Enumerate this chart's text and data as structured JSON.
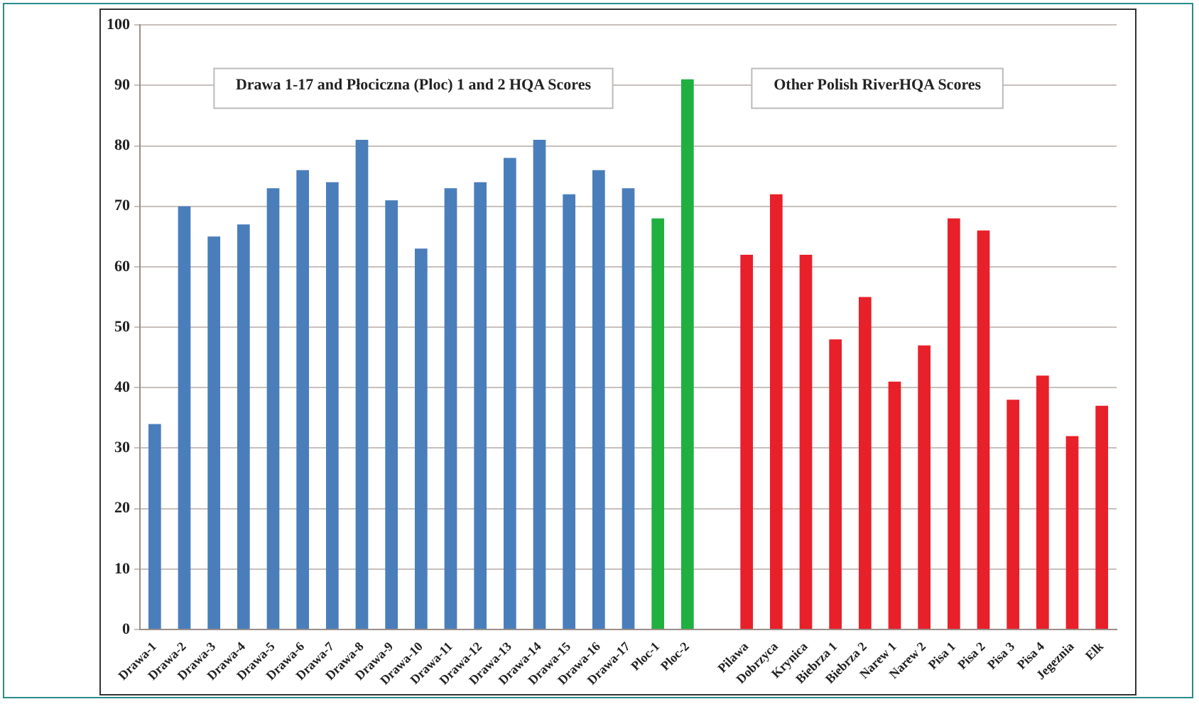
{
  "chart_data": {
    "type": "bar",
    "categories": [
      "Drawa-1",
      "Drawa-2",
      "Drawa-3",
      "Drawa-4",
      "Drawa-5",
      "Drawa-6",
      "Drawa-7",
      "Drawa-8",
      "Drawa-9",
      "Drawa-10",
      "Drawa-11",
      "Drawa-12",
      "Drawa-13",
      "Drawa-14",
      "Drawa-15",
      "Drawa-16",
      "Drawa-17",
      "Ploc-1",
      "Ploc-2",
      null,
      "Pilawa",
      "Dobrzyca",
      "Krynica",
      "Biebrza 1",
      "Biebrza 2",
      "Narew 1",
      "Narew 2",
      "Pisa 1",
      "Pisa 2",
      "Pisa 3",
      "Pisa 4",
      "Jegeznia",
      "Elk"
    ],
    "values": [
      34,
      70,
      65,
      67,
      73,
      76,
      74,
      81,
      71,
      63,
      73,
      74,
      78,
      81,
      72,
      76,
      73,
      68,
      91,
      null,
      62,
      72,
      62,
      48,
      55,
      41,
      47,
      68,
      66,
      38,
      42,
      32,
      37
    ],
    "colors": [
      "#4a7ebb",
      "#4a7ebb",
      "#4a7ebb",
      "#4a7ebb",
      "#4a7ebb",
      "#4a7ebb",
      "#4a7ebb",
      "#4a7ebb",
      "#4a7ebb",
      "#4a7ebb",
      "#4a7ebb",
      "#4a7ebb",
      "#4a7ebb",
      "#4a7ebb",
      "#4a7ebb",
      "#4a7ebb",
      "#4a7ebb",
      "#1fb040",
      "#1fb040",
      "#1fb040",
      "#e8202a",
      "#e8202a",
      "#e8202a",
      "#e8202a",
      "#e8202a",
      "#e8202a",
      "#e8202a",
      "#e8202a",
      "#e8202a",
      "#e8202a",
      "#e8202a",
      "#e8202a",
      "#e8202a"
    ],
    "ylim": [
      0,
      100
    ],
    "yticks": [
      0,
      10,
      20,
      30,
      40,
      50,
      60,
      70,
      80,
      90,
      100
    ],
    "grid": "y",
    "legend": false,
    "annotations": [
      "Drawa 1-17 and Płociczna (Ploc) 1 and 2 HQA Scores",
      "Other Polish RiverHQA Scores"
    ]
  }
}
